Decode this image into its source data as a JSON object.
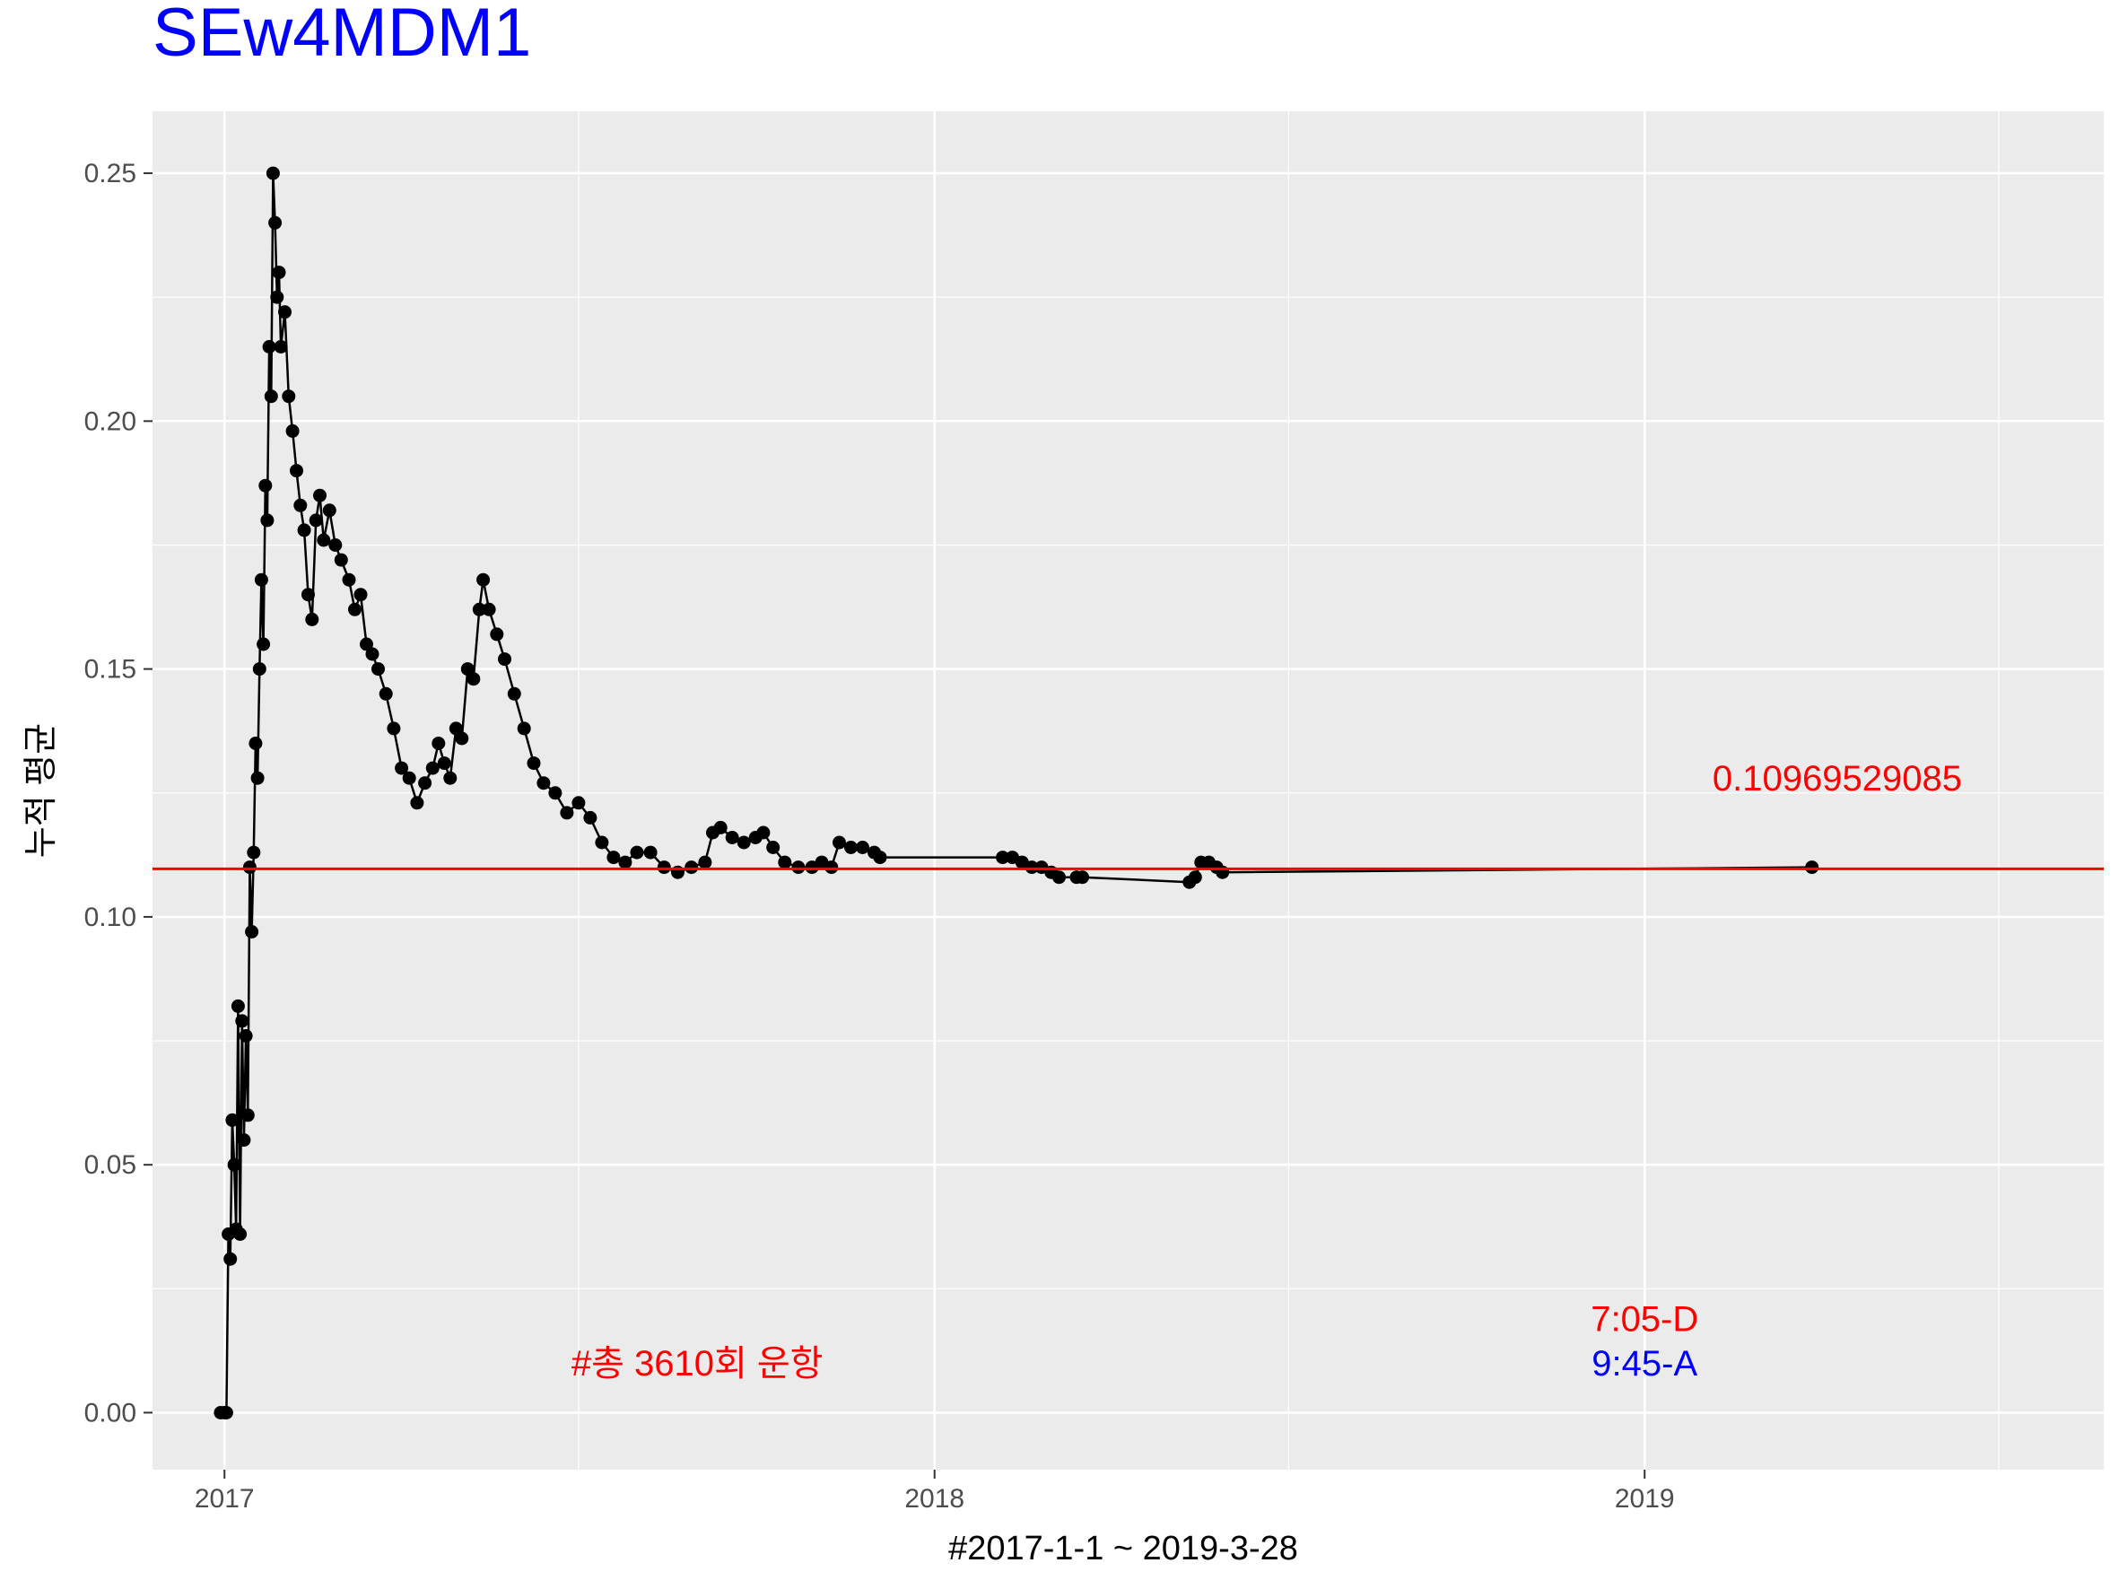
{
  "chart_data": {
    "type": "line",
    "title": "SEw4MDM1",
    "xlabel": "#2017-1-1 ~ 2019-3-28",
    "ylabel": "누적 평균",
    "x_axis": {
      "type": "date",
      "ticks": [
        "2017",
        "2018",
        "2019"
      ],
      "range": [
        "2016-11-25",
        "2019-08-25"
      ]
    },
    "y_axis": {
      "ticks": [
        "0.00",
        "0.05",
        "0.10",
        "0.15",
        "0.20",
        "0.25"
      ],
      "ylim": [
        -0.0115,
        0.2625
      ]
    },
    "grid": true,
    "legend": "none",
    "hline": {
      "value": 0.1096952908,
      "color": "#ff0000"
    },
    "annotations": [
      {
        "text": "0.10969529085",
        "color": "#ff0000",
        "x": "2019-04-10",
        "y": 0.128
      },
      {
        "text": "#총 3610회 운항",
        "color": "#ff0000",
        "x": "2017-09-01",
        "y": 0.01
      },
      {
        "text": "7:05-D",
        "color": "#ff0000",
        "x": "2019-01-01",
        "y": 0.019
      },
      {
        "text": "9:45-A",
        "color": "#0000ff",
        "x": "2019-01-01",
        "y": 0.01
      }
    ],
    "series": [
      {
        "color": "#000000",
        "points": [
          [
            "2016-12-30",
            0.0
          ],
          [
            "2017-01-01",
            0.0
          ],
          [
            "2017-01-02",
            0.0
          ],
          [
            "2017-01-03",
            0.036
          ],
          [
            "2017-01-04",
            0.031
          ],
          [
            "2017-01-05",
            0.059
          ],
          [
            "2017-01-06",
            0.05
          ],
          [
            "2017-01-07",
            0.037
          ],
          [
            "2017-01-08",
            0.082
          ],
          [
            "2017-01-09",
            0.036
          ],
          [
            "2017-01-10",
            0.079
          ],
          [
            "2017-01-11",
            0.055
          ],
          [
            "2017-01-12",
            0.076
          ],
          [
            "2017-01-13",
            0.06
          ],
          [
            "2017-01-14",
            0.11
          ],
          [
            "2017-01-15",
            0.097
          ],
          [
            "2017-01-16",
            0.113
          ],
          [
            "2017-01-17",
            0.135
          ],
          [
            "2017-01-18",
            0.128
          ],
          [
            "2017-01-19",
            0.15
          ],
          [
            "2017-01-20",
            0.168
          ],
          [
            "2017-01-21",
            0.155
          ],
          [
            "2017-01-22",
            0.187
          ],
          [
            "2017-01-23",
            0.18
          ],
          [
            "2017-01-24",
            0.215
          ],
          [
            "2017-01-25",
            0.205
          ],
          [
            "2017-01-26",
            0.25
          ],
          [
            "2017-01-27",
            0.24
          ],
          [
            "2017-01-28",
            0.225
          ],
          [
            "2017-01-29",
            0.23
          ],
          [
            "2017-01-30",
            0.215
          ],
          [
            "2017-02-01",
            0.222
          ],
          [
            "2017-02-03",
            0.205
          ],
          [
            "2017-02-05",
            0.198
          ],
          [
            "2017-02-07",
            0.19
          ],
          [
            "2017-02-09",
            0.183
          ],
          [
            "2017-02-11",
            0.178
          ],
          [
            "2017-02-13",
            0.165
          ],
          [
            "2017-02-15",
            0.16
          ],
          [
            "2017-02-17",
            0.18
          ],
          [
            "2017-02-19",
            0.185
          ],
          [
            "2017-02-21",
            0.176
          ],
          [
            "2017-02-24",
            0.182
          ],
          [
            "2017-02-27",
            0.175
          ],
          [
            "2017-03-02",
            0.172
          ],
          [
            "2017-03-06",
            0.168
          ],
          [
            "2017-03-09",
            0.162
          ],
          [
            "2017-03-12",
            0.165
          ],
          [
            "2017-03-15",
            0.155
          ],
          [
            "2017-03-18",
            0.153
          ],
          [
            "2017-03-21",
            0.15
          ],
          [
            "2017-03-25",
            0.145
          ],
          [
            "2017-03-29",
            0.138
          ],
          [
            "2017-04-02",
            0.13
          ],
          [
            "2017-04-06",
            0.128
          ],
          [
            "2017-04-10",
            0.123
          ],
          [
            "2017-04-14",
            0.127
          ],
          [
            "2017-04-18",
            0.13
          ],
          [
            "2017-04-21",
            0.135
          ],
          [
            "2017-04-24",
            0.131
          ],
          [
            "2017-04-27",
            0.128
          ],
          [
            "2017-04-30",
            0.138
          ],
          [
            "2017-05-03",
            0.136
          ],
          [
            "2017-05-06",
            0.15
          ],
          [
            "2017-05-09",
            0.148
          ],
          [
            "2017-05-12",
            0.162
          ],
          [
            "2017-05-14",
            0.168
          ],
          [
            "2017-05-17",
            0.162
          ],
          [
            "2017-05-21",
            0.157
          ],
          [
            "2017-05-25",
            0.152
          ],
          [
            "2017-05-30",
            0.145
          ],
          [
            "2017-06-04",
            0.138
          ],
          [
            "2017-06-09",
            0.131
          ],
          [
            "2017-06-14",
            0.127
          ],
          [
            "2017-06-20",
            0.125
          ],
          [
            "2017-06-26",
            0.121
          ],
          [
            "2017-07-02",
            0.123
          ],
          [
            "2017-07-08",
            0.12
          ],
          [
            "2017-07-14",
            0.115
          ],
          [
            "2017-07-20",
            0.112
          ],
          [
            "2017-07-26",
            0.111
          ],
          [
            "2017-08-01",
            0.113
          ],
          [
            "2017-08-08",
            0.113
          ],
          [
            "2017-08-15",
            0.11
          ],
          [
            "2017-08-22",
            0.109
          ],
          [
            "2017-08-29",
            0.11
          ],
          [
            "2017-09-05",
            0.111
          ],
          [
            "2017-09-09",
            0.117
          ],
          [
            "2017-09-13",
            0.118
          ],
          [
            "2017-09-19",
            0.116
          ],
          [
            "2017-09-25",
            0.115
          ],
          [
            "2017-10-01",
            0.116
          ],
          [
            "2017-10-05",
            0.117
          ],
          [
            "2017-10-10",
            0.114
          ],
          [
            "2017-10-16",
            0.111
          ],
          [
            "2017-10-23",
            0.11
          ],
          [
            "2017-10-30",
            0.11
          ],
          [
            "2017-11-04",
            0.111
          ],
          [
            "2017-11-09",
            0.11
          ],
          [
            "2017-11-13",
            0.115
          ],
          [
            "2017-11-19",
            0.114
          ],
          [
            "2017-11-25",
            0.114
          ],
          [
            "2017-12-01",
            0.113
          ],
          [
            "2017-12-04",
            0.112
          ],
          [
            "2018-02-05",
            0.112
          ],
          [
            "2018-02-10",
            0.112
          ],
          [
            "2018-02-15",
            0.111
          ],
          [
            "2018-02-20",
            0.11
          ],
          [
            "2018-02-25",
            0.11
          ],
          [
            "2018-03-02",
            0.109
          ],
          [
            "2018-03-06",
            0.108
          ],
          [
            "2018-03-15",
            0.108
          ],
          [
            "2018-03-18",
            0.108
          ],
          [
            "2018-05-12",
            0.107
          ],
          [
            "2018-05-15",
            0.108
          ],
          [
            "2018-05-18",
            0.111
          ],
          [
            "2018-05-22",
            0.111
          ],
          [
            "2018-05-26",
            0.11
          ],
          [
            "2018-05-29",
            0.109
          ],
          [
            "2019-03-28",
            0.11
          ]
        ]
      }
    ]
  }
}
